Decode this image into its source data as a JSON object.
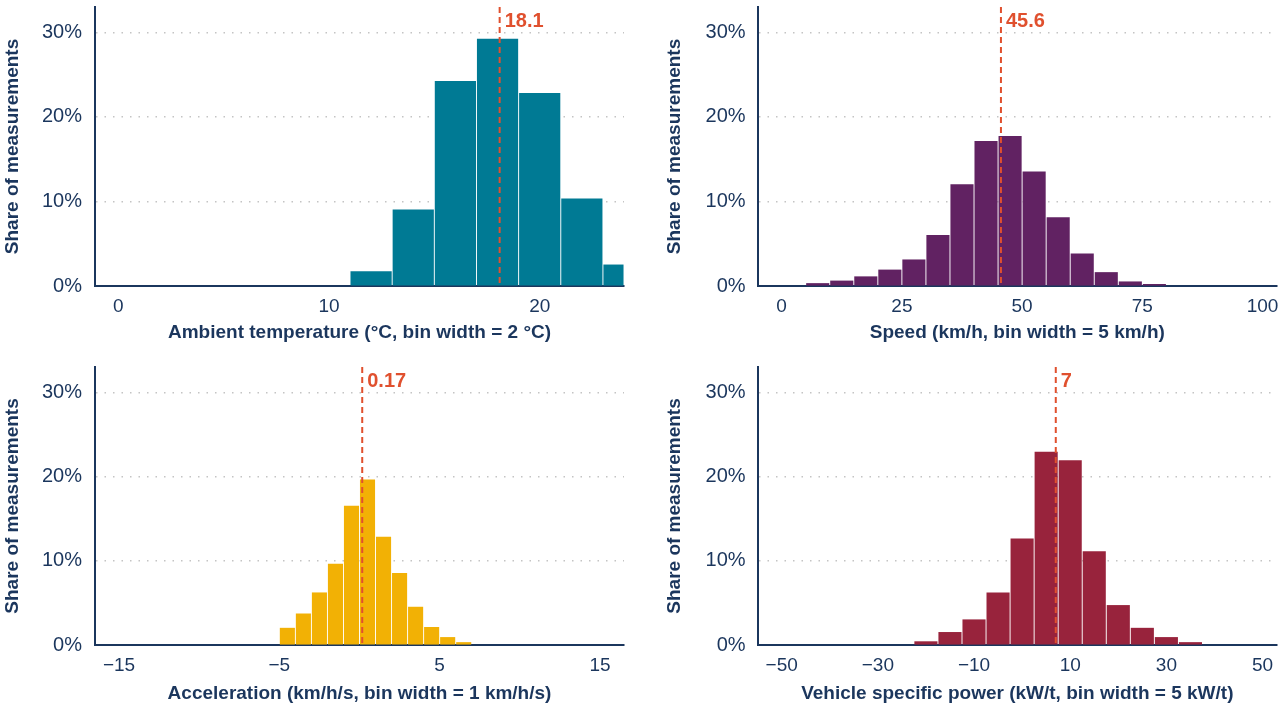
{
  "chart_data": [
    {
      "type": "histogram",
      "xlabel": "Ambient temperature (°C, bin width = 2 °C)",
      "ylabel": "Share of measurements",
      "bins": [
        11,
        13,
        15,
        17,
        19,
        21,
        23,
        24
      ],
      "values": [
        1.7,
        9.0,
        24.2,
        29.2,
        22.8,
        10.3,
        2.5
      ],
      "color": "#007a94",
      "xlim": [
        -1.1,
        24
      ],
      "ylim": [
        0,
        33
      ],
      "xticks": [
        0,
        10,
        20
      ],
      "yticks": [
        {
          "value": 0,
          "label": "0%"
        },
        {
          "value": 10,
          "label": "10%"
        },
        {
          "value": 20,
          "label": "20%"
        },
        {
          "value": 30,
          "label": "30%"
        }
      ],
      "grid": "y",
      "ref_lines": [
        {
          "axis": "x",
          "value": 18.1,
          "label": "18.1",
          "color": "#e0502e",
          "line_style": "dashed"
        }
      ]
    },
    {
      "type": "histogram",
      "xlabel": "Speed (km/h, bin width = 5 km/h)",
      "ylabel": "Share of measurements",
      "bins": [
        5,
        10,
        15,
        20,
        25,
        30,
        35,
        40,
        45,
        50,
        55,
        60,
        65,
        70,
        75,
        80
      ],
      "values": [
        0.3,
        0.6,
        1.1,
        1.9,
        3.1,
        6.0,
        12.0,
        17.1,
        17.7,
        13.5,
        8.1,
        3.8,
        1.6,
        0.5,
        0.2
      ],
      "color": "#612262",
      "xlim": [
        -5,
        103
      ],
      "ylim": [
        0,
        33
      ],
      "xticks": [
        0,
        25,
        50,
        75,
        100
      ],
      "yticks": [
        {
          "value": 0,
          "label": "0%"
        },
        {
          "value": 10,
          "label": "10%"
        },
        {
          "value": 20,
          "label": "20%"
        },
        {
          "value": 30,
          "label": "30%"
        }
      ],
      "grid": "y",
      "ref_lines": [
        {
          "axis": "x",
          "value": 45.6,
          "label": "45.6",
          "color": "#e0502e",
          "line_style": "dashed"
        }
      ]
    },
    {
      "type": "histogram",
      "xlabel": "Acceleration (km/h/s, bin width = 1 km/h/s)",
      "ylabel": "Share of measurements",
      "bins": [
        -5,
        -4,
        -3,
        -2,
        -1,
        0,
        1,
        2,
        3,
        4,
        5,
        6,
        7
      ],
      "values": [
        2.0,
        3.7,
        6.2,
        9.6,
        16.5,
        19.6,
        12.8,
        8.5,
        4.5,
        2.1,
        0.9,
        0.3
      ],
      "color": "#f2b105",
      "xlim": [
        -16.5,
        16.5
      ],
      "ylim": [
        0,
        33
      ],
      "xticks": [
        {
          "value": -15,
          "label": "−15"
        },
        {
          "value": -5,
          "label": "−5"
        },
        5,
        15
      ],
      "yticks": [
        {
          "value": 0,
          "label": "0%"
        },
        {
          "value": 10,
          "label": "10%"
        },
        {
          "value": 20,
          "label": "20%"
        },
        {
          "value": 30,
          "label": "30%"
        }
      ],
      "grid": "y",
      "ref_lines": [
        {
          "axis": "x",
          "value": 0.17,
          "label": "0.17",
          "color": "#e0502e",
          "line_style": "dashed"
        }
      ]
    },
    {
      "type": "histogram",
      "xlabel": "Vehicle specific power (kW/t, bin width = 5 kW/t)",
      "ylabel": "Share of measurements",
      "bins": [
        -22.5,
        -17.5,
        -12.5,
        -7.5,
        -2.5,
        2.5,
        7.5,
        12.5,
        17.5,
        22.5,
        27.5,
        32.5,
        37.5
      ],
      "values": [
        0.4,
        1.5,
        3.0,
        6.2,
        12.6,
        22.9,
        21.9,
        11.1,
        4.7,
        2.0,
        0.9,
        0.3
      ],
      "color": "#98233c",
      "xlim": [
        -55,
        53
      ],
      "ylim": [
        0,
        33
      ],
      "xticks": [
        {
          "value": -50,
          "label": "−50"
        },
        {
          "value": -30,
          "label": "−30"
        },
        {
          "value": -10,
          "label": "−10"
        },
        10,
        30,
        50
      ],
      "yticks": [
        {
          "value": 0,
          "label": "0%"
        },
        {
          "value": 10,
          "label": "10%"
        },
        {
          "value": 20,
          "label": "20%"
        },
        {
          "value": 30,
          "label": "30%"
        }
      ],
      "grid": "y",
      "ref_lines": [
        {
          "axis": "x",
          "value": 7,
          "label": "7",
          "color": "#e0502e",
          "line_style": "dashed"
        }
      ]
    }
  ]
}
